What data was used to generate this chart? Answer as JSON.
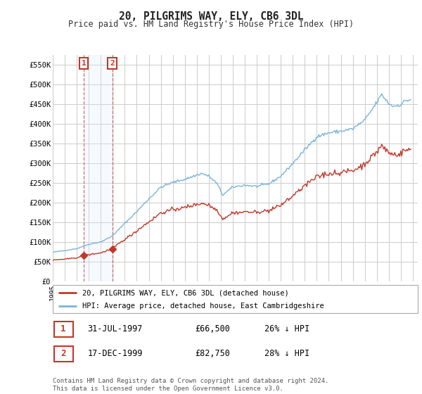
{
  "title": "20, PILGRIMS WAY, ELY, CB6 3DL",
  "subtitle": "Price paid vs. HM Land Registry's House Price Index (HPI)",
  "sale_dates_str": [
    "1997-07-31",
    "1999-12-17"
  ],
  "sale_prices": [
    66500,
    82750
  ],
  "sale_labels": [
    "1",
    "2"
  ],
  "sale_info": [
    {
      "label": "1",
      "date": "31-JUL-1997",
      "price": "£66,500",
      "hpi": "26% ↓ HPI"
    },
    {
      "label": "2",
      "date": "17-DEC-1999",
      "price": "£82,750",
      "hpi": "28% ↓ HPI"
    }
  ],
  "hpi_color": "#7ab4d8",
  "price_color": "#c0392b",
  "shaded_color": "#ddeeff",
  "annotation_box_color": "#c0392b",
  "legend_label_price": "20, PILGRIMS WAY, ELY, CB6 3DL (detached house)",
  "legend_label_hpi": "HPI: Average price, detached house, East Cambridgeshire",
  "footer": "Contains HM Land Registry data © Crown copyright and database right 2024.\nThis data is licensed under the Open Government Licence v3.0.",
  "ylim": [
    0,
    575000
  ],
  "yticks": [
    0,
    50000,
    100000,
    150000,
    200000,
    250000,
    300000,
    350000,
    400000,
    450000,
    500000,
    550000
  ],
  "ytick_labels": [
    "£0",
    "£50K",
    "£100K",
    "£150K",
    "£200K",
    "£250K",
    "£300K",
    "£350K",
    "£400K",
    "£450K",
    "£500K",
    "£550K"
  ],
  "background_color": "#ffffff",
  "grid_color": "#cccccc"
}
